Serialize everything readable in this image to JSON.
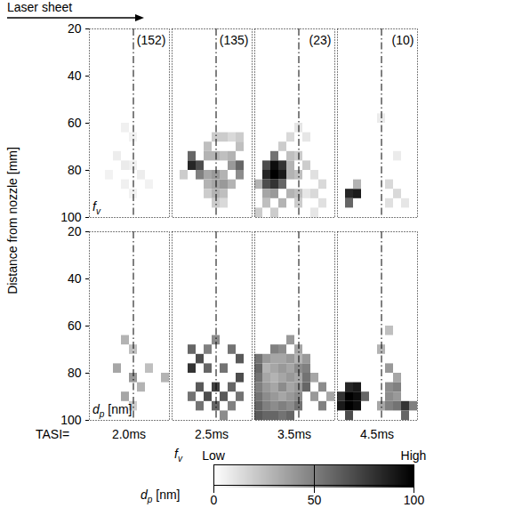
{
  "chart_data": {
    "type": "heatmap",
    "annotation": "Laser sheet",
    "ylabel": "Distance from nozzle [mm]",
    "ylim": [
      20,
      100
    ],
    "yticks": [
      20,
      40,
      60,
      80,
      100
    ],
    "xlim": [
      -22,
      18
    ],
    "tick_labels": "y",
    "centerline_x": 0,
    "cell_size": 4,
    "column_prefix": "TASI=",
    "columns": [
      {
        "label": "2.0ms",
        "count_label": "(152)"
      },
      {
        "label": "2.5ms",
        "count_label": "(135)"
      },
      {
        "label": "3.5ms",
        "count_label": "(23)"
      },
      {
        "label": "4.5ms",
        "count_label": "(10)"
      }
    ],
    "rows": [
      {
        "quantity": {
          "symbol": "f",
          "subscript": "v"
        },
        "colorbar": {
          "range": [
            0,
            1
          ],
          "ticks": [
            {
              "value": 0,
              "label": "Low"
            },
            {
              "value": 1,
              "label": "High"
            }
          ]
        },
        "cells": [
          [
            [
              -6,
              60,
              0.06
            ],
            [
              -2,
              64,
              0.05
            ],
            [
              -10,
              72,
              0.07
            ],
            [
              -6,
              76,
              0.08
            ],
            [
              -2,
              76,
              0.06
            ],
            [
              2,
              80,
              0.07
            ],
            [
              -6,
              84,
              0.06
            ],
            [
              -2,
              88,
              0.05
            ],
            [
              6,
              84,
              0.05
            ],
            [
              -14,
              80,
              0.05
            ]
          ],
          [
            [
              -14,
              72,
              0.6
            ],
            [
              -14,
              76,
              0.85
            ],
            [
              -10,
              76,
              0.7
            ],
            [
              -10,
              80,
              0.5
            ],
            [
              -18,
              80,
              0.2
            ],
            [
              -6,
              68,
              0.25
            ],
            [
              -2,
              64,
              0.2
            ],
            [
              2,
              64,
              0.2
            ],
            [
              6,
              64,
              0.15
            ],
            [
              10,
              64,
              0.2
            ],
            [
              10,
              68,
              0.25
            ],
            [
              -6,
              72,
              0.3
            ],
            [
              -2,
              72,
              0.3
            ],
            [
              2,
              72,
              0.25
            ],
            [
              6,
              72,
              0.3
            ],
            [
              -6,
              80,
              0.35
            ],
            [
              -2,
              80,
              0.4
            ],
            [
              2,
              80,
              0.3
            ],
            [
              6,
              76,
              0.4
            ],
            [
              10,
              76,
              0.6
            ],
            [
              10,
              80,
              0.45
            ],
            [
              -6,
              84,
              0.3
            ],
            [
              -2,
              84,
              0.35
            ],
            [
              2,
              84,
              0.4
            ],
            [
              6,
              84,
              0.3
            ],
            [
              -2,
              88,
              0.3
            ],
            [
              2,
              88,
              0.25
            ],
            [
              -6,
              88,
              0.2
            ],
            [
              -2,
              92,
              0.2
            ],
            [
              2,
              92,
              0.15
            ]
          ],
          [
            [
              -14,
              72,
              0.55
            ],
            [
              -18,
              76,
              0.7
            ],
            [
              -14,
              76,
              0.95
            ],
            [
              -10,
              76,
              0.8
            ],
            [
              -18,
              80,
              0.85
            ],
            [
              -14,
              80,
              1.0
            ],
            [
              -10,
              80,
              0.9
            ],
            [
              -18,
              84,
              0.7
            ],
            [
              -14,
              84,
              0.8
            ],
            [
              -10,
              84,
              0.6
            ],
            [
              -22,
              84,
              0.3
            ],
            [
              -10,
              68,
              0.2
            ],
            [
              -6,
              64,
              0.15
            ],
            [
              -6,
              72,
              0.25
            ],
            [
              -6,
              76,
              0.3
            ],
            [
              -6,
              80,
              0.3
            ],
            [
              -2,
              72,
              0.2
            ],
            [
              -2,
              80,
              0.25
            ],
            [
              2,
              76,
              0.2
            ],
            [
              -6,
              88,
              0.3
            ],
            [
              -2,
              88,
              0.25
            ],
            [
              -14,
              88,
              0.4
            ],
            [
              -18,
              88,
              0.35
            ],
            [
              -10,
              92,
              0.3
            ],
            [
              -18,
              92,
              0.25
            ],
            [
              -2,
              92,
              0.2
            ],
            [
              -22,
              96,
              0.2
            ],
            [
              -14,
              96,
              0.2
            ],
            [
              6,
              80,
              0.12
            ],
            [
              10,
              84,
              0.15
            ],
            [
              6,
              88,
              0.15
            ],
            [
              10,
              92,
              0.12
            ],
            [
              2,
              88,
              0.1
            ],
            [
              6,
              96,
              0.1
            ],
            [
              -2,
              60,
              0.1
            ],
            [
              2,
              64,
              0.1
            ]
          ],
          [
            [
              -18,
              88,
              0.85
            ],
            [
              -14,
              88,
              0.9
            ],
            [
              -18,
              92,
              0.6
            ],
            [
              -14,
              84,
              0.3
            ],
            [
              2,
              84,
              0.15
            ],
            [
              6,
              88,
              0.15
            ],
            [
              2,
              92,
              0.12
            ],
            [
              10,
              92,
              0.1
            ],
            [
              -2,
              56,
              0.08
            ],
            [
              6,
              72,
              0.08
            ]
          ]
        ]
      },
      {
        "quantity": {
          "symbol": "d",
          "subscript": "p",
          "unit": "[nm]"
        },
        "colorbar": {
          "range": [
            0,
            100
          ],
          "ticks": [
            0,
            50,
            100
          ]
        },
        "cells": [
          [
            [
              -6,
              64,
              30
            ],
            [
              -2,
              68,
              25
            ],
            [
              -10,
              76,
              35
            ],
            [
              -2,
              80,
              40
            ],
            [
              2,
              84,
              30
            ],
            [
              -6,
              88,
              35
            ],
            [
              6,
              76,
              25
            ],
            [
              -2,
              92,
              20
            ],
            [
              14,
              80,
              30
            ]
          ],
          [
            [
              -14,
              68,
              60
            ],
            [
              -10,
              72,
              70
            ],
            [
              -6,
              68,
              50
            ],
            [
              -2,
              64,
              45
            ],
            [
              6,
              68,
              55
            ],
            [
              10,
              72,
              65
            ],
            [
              -14,
              76,
              80
            ],
            [
              -6,
              76,
              60
            ],
            [
              2,
              76,
              55
            ],
            [
              10,
              80,
              70
            ],
            [
              -10,
              84,
              65
            ],
            [
              -2,
              84,
              75
            ],
            [
              6,
              84,
              60
            ],
            [
              -14,
              88,
              55
            ],
            [
              -6,
              88,
              70
            ],
            [
              2,
              88,
              65
            ],
            [
              10,
              88,
              55
            ],
            [
              -2,
              92,
              60
            ],
            [
              6,
              92,
              50
            ],
            [
              -10,
              92,
              55
            ],
            [
              2,
              96,
              45
            ]
          ],
          [
            [
              -14,
              68,
              50
            ],
            [
              -10,
              68,
              45
            ],
            [
              -6,
              64,
              40
            ],
            [
              -2,
              68,
              35
            ],
            [
              2,
              72,
              40
            ],
            [
              -22,
              72,
              55
            ],
            [
              -18,
              72,
              40
            ],
            [
              -14,
              72,
              35
            ],
            [
              -10,
              72,
              35
            ],
            [
              -6,
              72,
              40
            ],
            [
              -2,
              72,
              30
            ],
            [
              -22,
              76,
              60
            ],
            [
              -18,
              76,
              30
            ],
            [
              -14,
              76,
              35
            ],
            [
              -10,
              76,
              40
            ],
            [
              -6,
              76,
              35
            ],
            [
              -2,
              76,
              45
            ],
            [
              2,
              76,
              50
            ],
            [
              -22,
              80,
              55
            ],
            [
              -18,
              80,
              35
            ],
            [
              -14,
              80,
              30
            ],
            [
              -10,
              80,
              35
            ],
            [
              -6,
              80,
              40
            ],
            [
              -2,
              80,
              35
            ],
            [
              2,
              80,
              55
            ],
            [
              -22,
              84,
              50
            ],
            [
              -18,
              84,
              40
            ],
            [
              -14,
              84,
              35
            ],
            [
              -10,
              84,
              45
            ],
            [
              -6,
              84,
              35
            ],
            [
              -2,
              84,
              40
            ],
            [
              2,
              84,
              60
            ],
            [
              -22,
              88,
              55
            ],
            [
              -18,
              88,
              45
            ],
            [
              -14,
              88,
              40
            ],
            [
              -10,
              88,
              35
            ],
            [
              -6,
              88,
              40
            ],
            [
              -2,
              88,
              45
            ],
            [
              -22,
              92,
              60
            ],
            [
              -18,
              92,
              50
            ],
            [
              -14,
              92,
              45
            ],
            [
              -10,
              92,
              50
            ],
            [
              -6,
              92,
              45
            ],
            [
              -2,
              92,
              55
            ],
            [
              -22,
              96,
              65
            ],
            [
              -18,
              96,
              60
            ],
            [
              -14,
              96,
              60
            ],
            [
              -10,
              96,
              55
            ],
            [
              -6,
              96,
              60
            ],
            [
              6,
              80,
              35
            ],
            [
              10,
              84,
              45
            ],
            [
              6,
              88,
              40
            ],
            [
              10,
              92,
              50
            ],
            [
              14,
              88,
              35
            ]
          ],
          [
            [
              -18,
              84,
              85
            ],
            [
              -14,
              84,
              90
            ],
            [
              -22,
              88,
              80
            ],
            [
              -18,
              88,
              100
            ],
            [
              -14,
              88,
              95
            ],
            [
              -22,
              92,
              90
            ],
            [
              -18,
              92,
              100
            ],
            [
              -14,
              92,
              95
            ],
            [
              -10,
              88,
              60
            ],
            [
              -18,
              96,
              70
            ],
            [
              2,
              76,
              40
            ],
            [
              6,
              80,
              35
            ],
            [
              2,
              84,
              45
            ],
            [
              6,
              84,
              50
            ],
            [
              2,
              88,
              45
            ],
            [
              6,
              88,
              40
            ],
            [
              -2,
              92,
              35
            ],
            [
              2,
              92,
              50
            ],
            [
              6,
              92,
              55
            ],
            [
              10,
              92,
              80
            ],
            [
              10,
              96,
              60
            ],
            [
              14,
              92,
              50
            ],
            [
              -2,
              68,
              30
            ],
            [
              2,
              60,
              25
            ]
          ]
        ]
      }
    ]
  }
}
